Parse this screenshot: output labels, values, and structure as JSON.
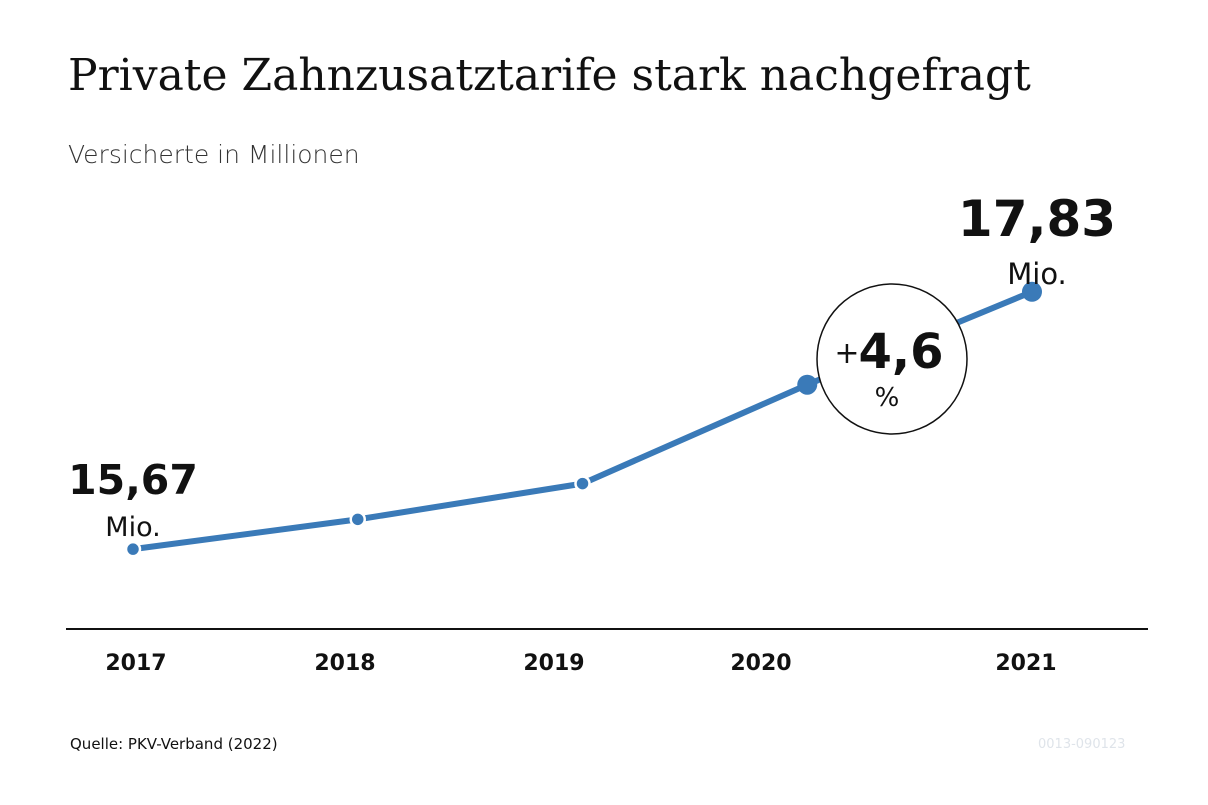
{
  "colors": {
    "line": "#3a7ab8",
    "axis": "#111111",
    "text": "#111111",
    "code": "#dfe4ea"
  },
  "chart_data": {
    "type": "line",
    "title": "Private Zahnzusatztarife stark nachgefragt",
    "subtitle": "Versicherte in Millionen",
    "categories": [
      "2017",
      "2018",
      "2019",
      "2020",
      "2021"
    ],
    "x": [
      2017,
      2018,
      2019,
      2020,
      2021
    ],
    "values": [
      15.67,
      15.92,
      16.22,
      17.05,
      17.83
    ],
    "ylim": [
      15.0,
      18.6
    ],
    "grid": false,
    "legend": "none",
    "annotations": {
      "first_value": "15,67",
      "first_unit": "Mio.",
      "last_value": "17,83",
      "last_unit": "Mio.",
      "change_sign": "+",
      "change_value": "4,6",
      "change_unit": "%"
    }
  },
  "footer": {
    "source": "Quelle: PKV-Verband (2022)",
    "code": "0013-090123"
  }
}
